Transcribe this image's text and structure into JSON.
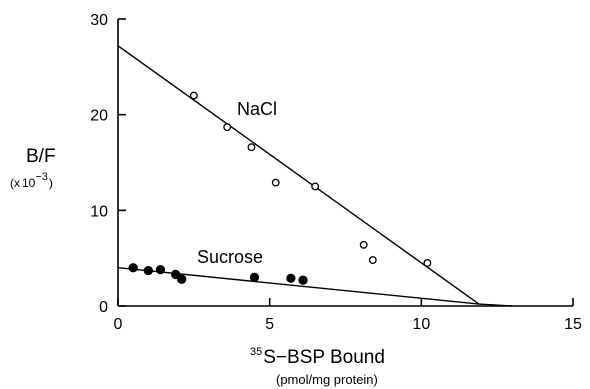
{
  "chart_data": {
    "type": "scatter",
    "xlim": [
      0,
      15
    ],
    "ylim": [
      0,
      30
    ],
    "x_ticks": [
      0,
      5,
      10,
      15
    ],
    "y_ticks": [
      0,
      10,
      20,
      30
    ],
    "x_tick_labels": [
      "0",
      "5",
      "10",
      "15"
    ],
    "y_tick_labels": [
      "0",
      "10",
      "20",
      "30"
    ],
    "xlabel": {
      "superscript": "35",
      "main": "S−BSP Bound",
      "units": "(pmol/mg protein)"
    },
    "ylabel": {
      "main": "B/F",
      "scale_prefix": "(x",
      "scale_base": "10",
      "scale_exponent": "−3",
      "scale_suffix": ")"
    },
    "grid": false,
    "series": [
      {
        "name": "NaCl",
        "marker": "open-circle",
        "points": [
          [
            2.5,
            22.0
          ],
          [
            3.6,
            18.7
          ],
          [
            4.4,
            16.6
          ],
          [
            5.2,
            12.9
          ],
          [
            6.5,
            12.5
          ],
          [
            8.1,
            6.4
          ],
          [
            8.4,
            4.8
          ],
          [
            10.2,
            4.5
          ]
        ],
        "fit_line": [
          [
            0,
            27.2
          ],
          [
            11.9,
            0.2
          ],
          [
            13.0,
            0
          ]
        ]
      },
      {
        "name": "Sucrose",
        "marker": "filled-circle",
        "points": [
          [
            0.5,
            4.0
          ],
          [
            1.0,
            3.7
          ],
          [
            1.4,
            3.8
          ],
          [
            1.9,
            3.3
          ],
          [
            2.1,
            2.8
          ],
          [
            4.5,
            3.0
          ],
          [
            5.7,
            2.9
          ],
          [
            6.1,
            2.7
          ]
        ],
        "fit_line": [
          [
            0,
            4.0
          ],
          [
            11.9,
            0.2
          ]
        ]
      }
    ]
  }
}
